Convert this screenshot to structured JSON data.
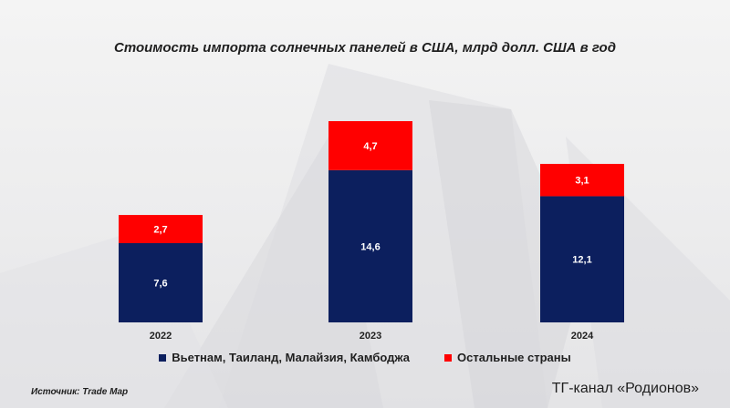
{
  "chart_data": {
    "type": "bar",
    "stacked": true,
    "title": "Стоимость импорта солнечных панелей в США, млрд долл. США в год",
    "categories": [
      "2022",
      "2023",
      "2024"
    ],
    "series": [
      {
        "name": "Вьетнам, Таиланд, Малайзия, Камбоджа",
        "values": [
          7.6,
          14.6,
          12.1
        ],
        "labels": [
          "7,6",
          "14,6",
          "12,1"
        ],
        "color": "#0c1f5e"
      },
      {
        "name": "Остальные страны",
        "values": [
          2.7,
          4.7,
          3.1
        ],
        "labels": [
          "2,7",
          "4,7",
          "3,1"
        ],
        "color": "#ff0000"
      }
    ],
    "ylim": [
      0,
      19.3
    ],
    "grid": false,
    "legend_position": "bottom"
  },
  "footer": {
    "source": "Источник: Trade Map",
    "channel": "ТГ-канал «Родионов»"
  }
}
